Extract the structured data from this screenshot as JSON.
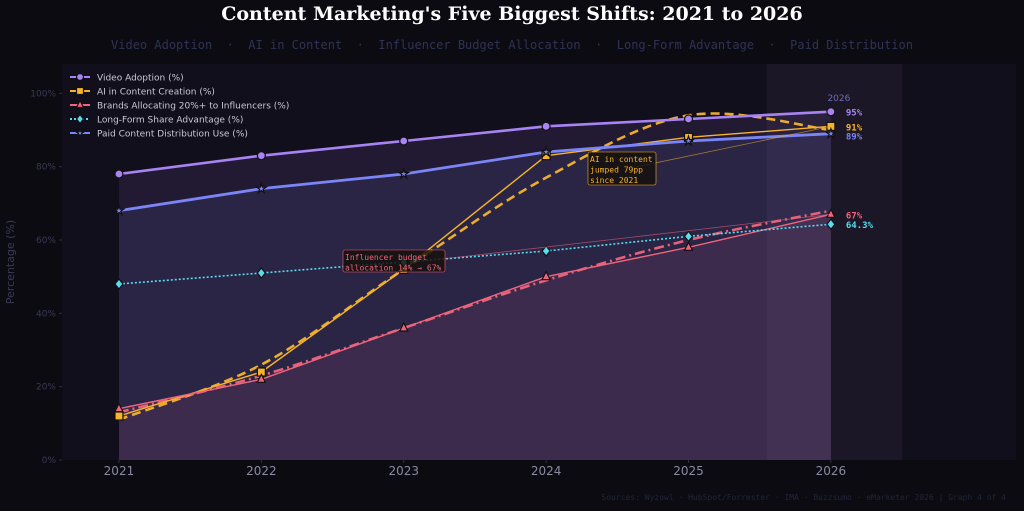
{
  "title": "Content Marketing's Five Biggest Shifts: 2021 to 2026",
  "subtitle": "Video Adoption  ·  AI in Content  ·  Influencer Budget Allocation  ·  Long-Form Advantage  ·  Paid Distribution",
  "footer": "Sources: Wyzowl · HubSpot/Forrester · IMA · Buzzsumo · eMarketer 2026  |  Graph 4 of 4",
  "highlight_label": "2026",
  "colors": {
    "background": "#0b0b11",
    "plot_background": "#120f1c",
    "highlight_band": "#1c1727",
    "video": "#a883f3",
    "ai": "#f7b32c",
    "influencer": "#f0657d",
    "longform": "#59dbf0",
    "paid": "#7b85f7"
  },
  "chart_data": {
    "type": "line",
    "x": [
      2021,
      2022,
      2023,
      2024,
      2025,
      2026
    ],
    "xlim": [
      2020.6,
      2027.3
    ],
    "ylim": [
      0,
      108
    ],
    "yticks": [
      0,
      20,
      40,
      60,
      80,
      100
    ],
    "ytick_labels": [
      "0%",
      "20%",
      "40%",
      "60%",
      "80%",
      "100%"
    ],
    "xtick_labels": [
      "2021",
      "2022",
      "2023",
      "2024",
      "2025",
      "2026"
    ],
    "xlabel": "",
    "ylabel": "Percentage (%)",
    "grid": false,
    "legend_position": "top-left",
    "highlight_range": [
      2025.55,
      2026.5
    ],
    "series": [
      {
        "name": "Video Adoption (%)",
        "key": "video",
        "marker": "circle",
        "values": [
          78,
          83,
          87,
          91,
          93,
          95
        ],
        "end_label": "95%",
        "fill": true
      },
      {
        "name": "AI in Content Creation (%)",
        "key": "ai",
        "marker": "square",
        "values": [
          12,
          24,
          52,
          83,
          88,
          91
        ],
        "end_label": "91%",
        "trend": [
          11,
          26,
          52,
          77,
          94,
          90
        ]
      },
      {
        "name": "Brands Allocating 20%+ to Influencers (%)",
        "key": "influencer",
        "marker": "triangle",
        "values": [
          14,
          22,
          36,
          50,
          58,
          67
        ],
        "end_label": "67%",
        "fill": true,
        "trend": [
          13,
          23,
          36,
          49,
          60,
          68
        ]
      },
      {
        "name": "Long-Form Share Advantage (%)",
        "key": "longform",
        "marker": "diamond",
        "values": [
          48,
          51,
          54,
          57,
          61,
          64.3
        ],
        "end_label": "64.3%"
      },
      {
        "name": "Paid Content Distribution Use (%)",
        "key": "paid",
        "marker": "star",
        "values": [
          68,
          74,
          78,
          84,
          87,
          89
        ],
        "end_label": "89%",
        "fill": true
      }
    ],
    "annotations": [
      {
        "text": [
          "AI in content",
          "jumped 79pp",
          "since 2021"
        ],
        "series": "ai",
        "target_x": 2026,
        "target_y": 91
      },
      {
        "text": [
          "Influencer budget",
          "allocation 14% → 67%"
        ],
        "series": "influencer",
        "target_x": 2026,
        "target_y": 67
      }
    ]
  }
}
